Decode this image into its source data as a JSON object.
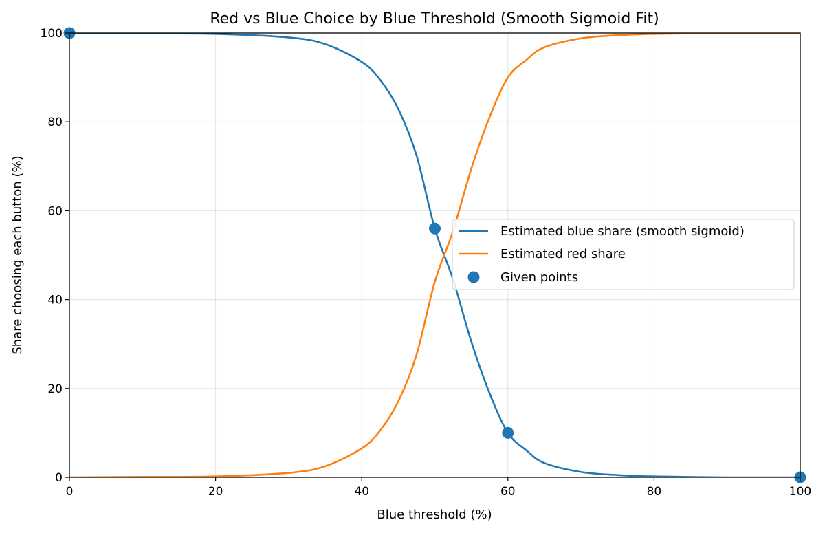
{
  "chart_data": {
    "type": "line",
    "title": "Red vs Blue Choice by Blue Threshold (Smooth Sigmoid Fit)",
    "xlabel": "Blue threshold (%)",
    "ylabel": "Share choosing each button (%)",
    "xlim": [
      0,
      100
    ],
    "ylim": [
      0,
      100
    ],
    "xticks": [
      "0",
      "20",
      "40",
      "60",
      "80",
      "100"
    ],
    "yticks": [
      "0",
      "20",
      "40",
      "60",
      "80",
      "100"
    ],
    "grid": true,
    "legend_position": "center-right",
    "x": [
      0,
      10,
      20,
      30,
      35,
      40,
      42.5,
      45,
      47.5,
      50,
      52.5,
      55,
      57.5,
      60,
      62.5,
      65,
      70,
      75,
      80,
      90,
      100
    ],
    "series": [
      {
        "name": "Estimated blue share (smooth sigmoid)",
        "type": "line",
        "color": "#1f77b4",
        "values": [
          100.0,
          99.9,
          99.8,
          99.0,
          97.5,
          93.5,
          89.5,
          82.9,
          72.4,
          56.0,
          44.5,
          30.5,
          18.9,
          10.0,
          6.1,
          3.2,
          1.2,
          0.5,
          0.2,
          0.0,
          0.0
        ]
      },
      {
        "name": "Estimated red share",
        "type": "line",
        "color": "#ff7f0e",
        "values": [
          0.0,
          0.1,
          0.2,
          1.0,
          2.5,
          6.5,
          10.5,
          17.1,
          27.6,
          44.0,
          55.5,
          69.5,
          81.1,
          90.0,
          93.9,
          96.8,
          98.8,
          99.5,
          99.8,
          100.0,
          100.0
        ]
      },
      {
        "name": "Given points",
        "type": "scatter",
        "color": "#1f77b4",
        "points": [
          {
            "x": 0,
            "y": 100
          },
          {
            "x": 50,
            "y": 56
          },
          {
            "x": 60,
            "y": 10
          },
          {
            "x": 100,
            "y": 0
          }
        ]
      }
    ]
  }
}
